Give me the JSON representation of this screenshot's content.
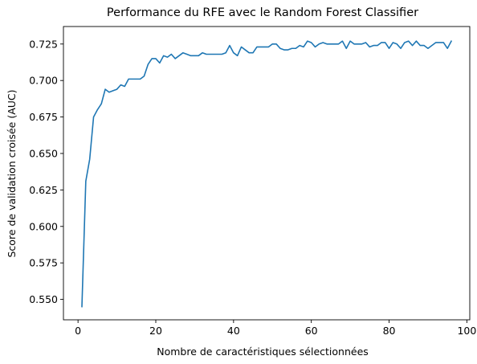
{
  "chart_data": {
    "type": "line",
    "title": "Performance du RFE avec le Random Forest Classifier",
    "xlabel": "Nombre de caractéristiques sélectionnées",
    "ylabel": "Score de validation croisée (AUC)",
    "xlim": [
      -3.75,
      100.75
    ],
    "ylim": [
      0.536,
      0.737
    ],
    "xticks": [
      0,
      20,
      40,
      60,
      80,
      100
    ],
    "yticks": [
      0.55,
      0.575,
      0.6,
      0.625,
      0.65,
      0.675,
      0.7,
      0.725
    ],
    "xtick_labels": [
      "0",
      "20",
      "40",
      "60",
      "80",
      "100"
    ],
    "ytick_labels": [
      "0.550",
      "0.575",
      "0.600",
      "0.625",
      "0.650",
      "0.675",
      "0.700",
      "0.725"
    ],
    "grid": false,
    "series": [
      {
        "color": "#1f77b4",
        "x": [
          1,
          2,
          3,
          4,
          5,
          6,
          7,
          8,
          9,
          10,
          11,
          12,
          13,
          14,
          15,
          16,
          17,
          18,
          19,
          20,
          21,
          22,
          23,
          24,
          25,
          26,
          27,
          28,
          29,
          30,
          31,
          32,
          33,
          34,
          35,
          36,
          37,
          38,
          39,
          40,
          41,
          42,
          43,
          44,
          45,
          46,
          47,
          48,
          49,
          50,
          51,
          52,
          53,
          54,
          55,
          56,
          57,
          58,
          59,
          60,
          61,
          62,
          63,
          64,
          65,
          66,
          67,
          68,
          69,
          70,
          71,
          72,
          73,
          74,
          75,
          76,
          77,
          78,
          79,
          80,
          81,
          82,
          83,
          84,
          85,
          86,
          87,
          88,
          89,
          90,
          91,
          92,
          93,
          94,
          95,
          96
        ],
        "values": [
          0.545,
          0.631,
          0.646,
          0.675,
          0.68,
          0.684,
          0.694,
          0.692,
          0.693,
          0.694,
          0.697,
          0.696,
          0.701,
          0.701,
          0.701,
          0.701,
          0.703,
          0.711,
          0.715,
          0.715,
          0.712,
          0.717,
          0.716,
          0.718,
          0.715,
          0.717,
          0.719,
          0.718,
          0.717,
          0.717,
          0.717,
          0.719,
          0.718,
          0.718,
          0.718,
          0.718,
          0.718,
          0.719,
          0.724,
          0.719,
          0.717,
          0.723,
          0.721,
          0.719,
          0.719,
          0.723,
          0.723,
          0.723,
          0.723,
          0.725,
          0.725,
          0.722,
          0.721,
          0.721,
          0.722,
          0.722,
          0.724,
          0.723,
          0.727,
          0.726,
          0.723,
          0.725,
          0.726,
          0.725,
          0.725,
          0.725,
          0.725,
          0.727,
          0.722,
          0.727,
          0.725,
          0.725,
          0.725,
          0.726,
          0.723,
          0.724,
          0.724,
          0.726,
          0.726,
          0.722,
          0.726,
          0.725,
          0.722,
          0.726,
          0.727,
          0.724,
          0.727,
          0.724,
          0.724,
          0.722,
          0.724,
          0.726,
          0.726,
          0.726,
          0.722,
          0.727
        ]
      }
    ]
  }
}
